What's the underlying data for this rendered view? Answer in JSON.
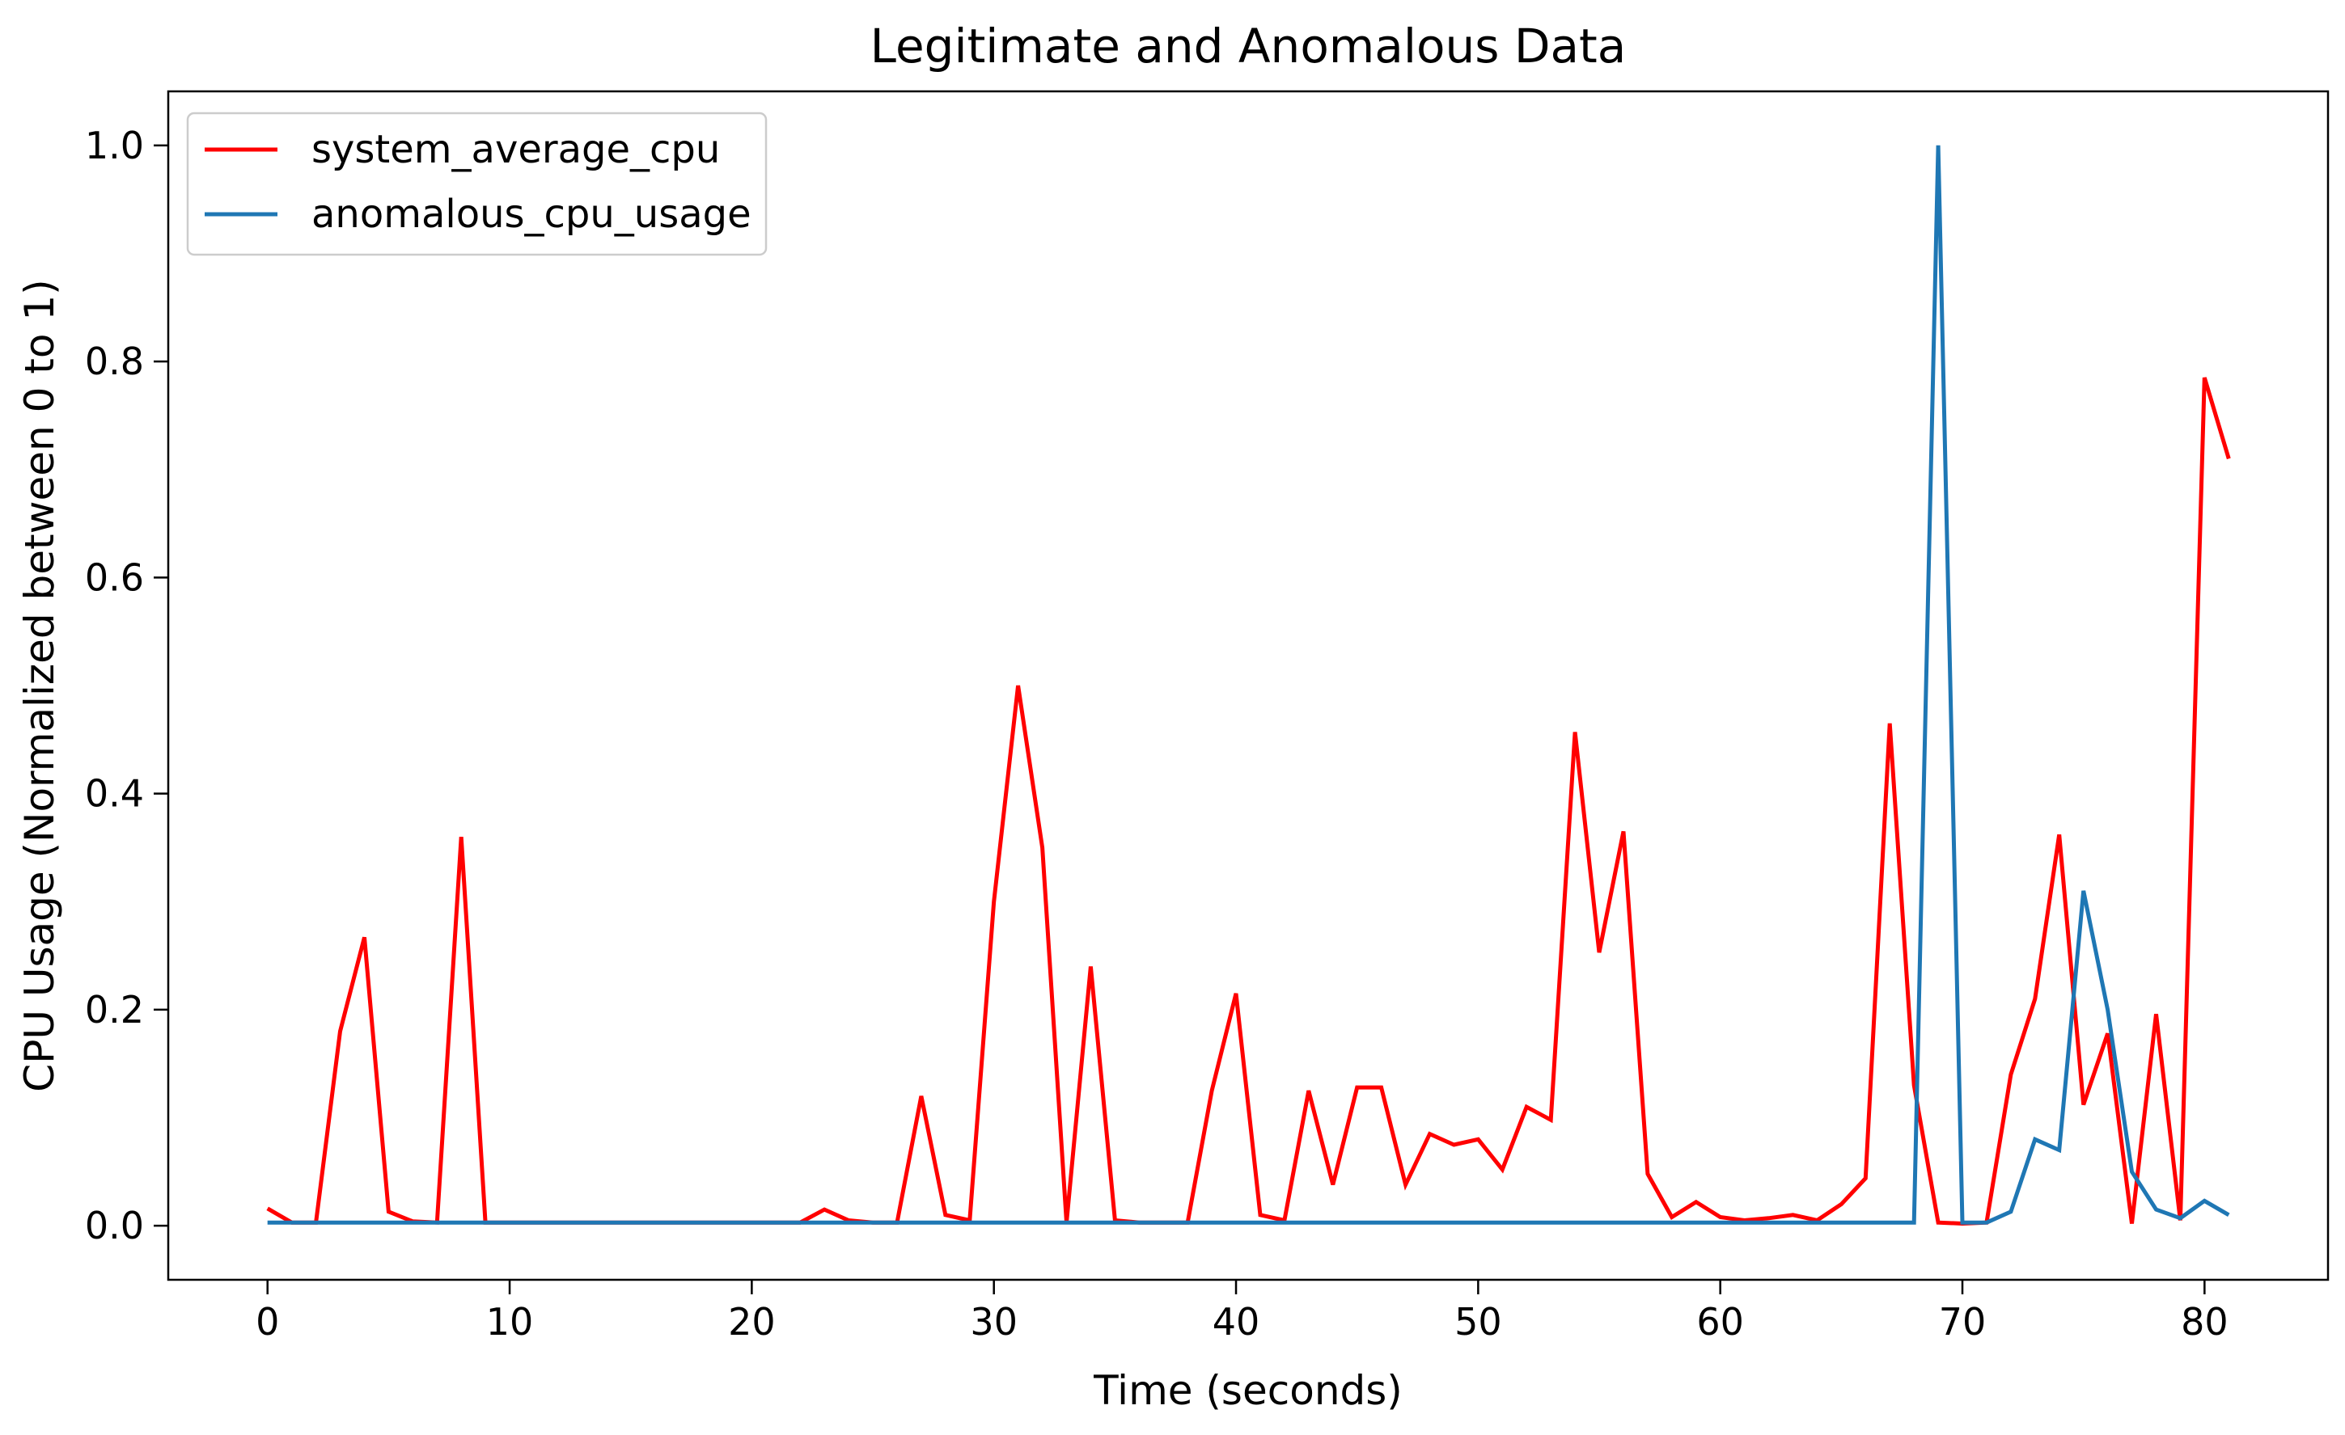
{
  "chart_data": {
    "type": "line",
    "title": "Legitimate and Anomalous Data",
    "xlabel": "Time (seconds)",
    "ylabel": "CPU Usage (Normalized between 0 to 1)",
    "xlim": [
      -4.1,
      85.1
    ],
    "ylim": [
      -0.05,
      1.05
    ],
    "xticks": [
      0,
      10,
      20,
      30,
      40,
      50,
      60,
      70,
      80
    ],
    "yticks": [
      0.0,
      0.2,
      0.4,
      0.6,
      0.8,
      1.0
    ],
    "ytick_labels": [
      "0.0",
      "0.2",
      "0.4",
      "0.6",
      "0.8",
      "1.0"
    ],
    "grid": false,
    "legend_position": "upper-left",
    "x": [
      0,
      1,
      2,
      3,
      4,
      5,
      6,
      7,
      8,
      9,
      10,
      11,
      12,
      13,
      14,
      15,
      16,
      17,
      18,
      19,
      20,
      21,
      22,
      23,
      24,
      25,
      26,
      27,
      28,
      29,
      30,
      31,
      32,
      33,
      34,
      35,
      36,
      37,
      38,
      39,
      40,
      41,
      42,
      43,
      44,
      45,
      46,
      47,
      48,
      49,
      50,
      51,
      52,
      53,
      54,
      55,
      56,
      57,
      58,
      59,
      60,
      61,
      62,
      63,
      64,
      65,
      66,
      67,
      68,
      69,
      70,
      71,
      72,
      73,
      74,
      75,
      76,
      77,
      78,
      79,
      80,
      81
    ],
    "series": [
      {
        "name": "system_average_cpu",
        "color": "#ff0000",
        "values": [
          0.016,
          0.003,
          0.003,
          0.18,
          0.267,
          0.013,
          0.004,
          0.003,
          0.36,
          0.003,
          0.003,
          0.003,
          0.003,
          0.003,
          0.003,
          0.003,
          0.003,
          0.003,
          0.003,
          0.003,
          0.003,
          0.003,
          0.003,
          0.015,
          0.005,
          0.003,
          0.003,
          0.12,
          0.01,
          0.005,
          0.3,
          0.5,
          0.35,
          0.003,
          0.24,
          0.005,
          0.003,
          0.003,
          0.003,
          0.125,
          0.215,
          0.01,
          0.005,
          0.125,
          0.038,
          0.128,
          0.128,
          0.038,
          0.085,
          0.075,
          0.08,
          0.052,
          0.11,
          0.098,
          0.457,
          0.253,
          0.365,
          0.048,
          0.008,
          0.022,
          0.008,
          0.005,
          0.007,
          0.01,
          0.005,
          0.02,
          0.044,
          0.465,
          0.13,
          0.003,
          0.002,
          0.003,
          0.14,
          0.21,
          0.362,
          0.112,
          0.178,
          0.002,
          0.196,
          0.005,
          0.785,
          0.71
        ]
      },
      {
        "name": "anomalous_cpu_usage",
        "color": "#1f77b4",
        "values": [
          0.003,
          0.003,
          0.003,
          0.003,
          0.003,
          0.003,
          0.003,
          0.003,
          0.003,
          0.003,
          0.003,
          0.003,
          0.003,
          0.003,
          0.003,
          0.003,
          0.003,
          0.003,
          0.003,
          0.003,
          0.003,
          0.003,
          0.003,
          0.003,
          0.003,
          0.003,
          0.003,
          0.003,
          0.003,
          0.003,
          0.003,
          0.003,
          0.003,
          0.003,
          0.003,
          0.003,
          0.003,
          0.003,
          0.003,
          0.003,
          0.003,
          0.003,
          0.003,
          0.003,
          0.003,
          0.003,
          0.003,
          0.003,
          0.003,
          0.003,
          0.003,
          0.003,
          0.003,
          0.003,
          0.003,
          0.003,
          0.003,
          0.003,
          0.003,
          0.003,
          0.003,
          0.003,
          0.003,
          0.003,
          0.003,
          0.003,
          0.003,
          0.003,
          0.003,
          1.0,
          0.003,
          0.003,
          0.013,
          0.08,
          0.07,
          0.31,
          0.2,
          0.05,
          0.015,
          0.007,
          0.023,
          0.01
        ]
      }
    ]
  }
}
